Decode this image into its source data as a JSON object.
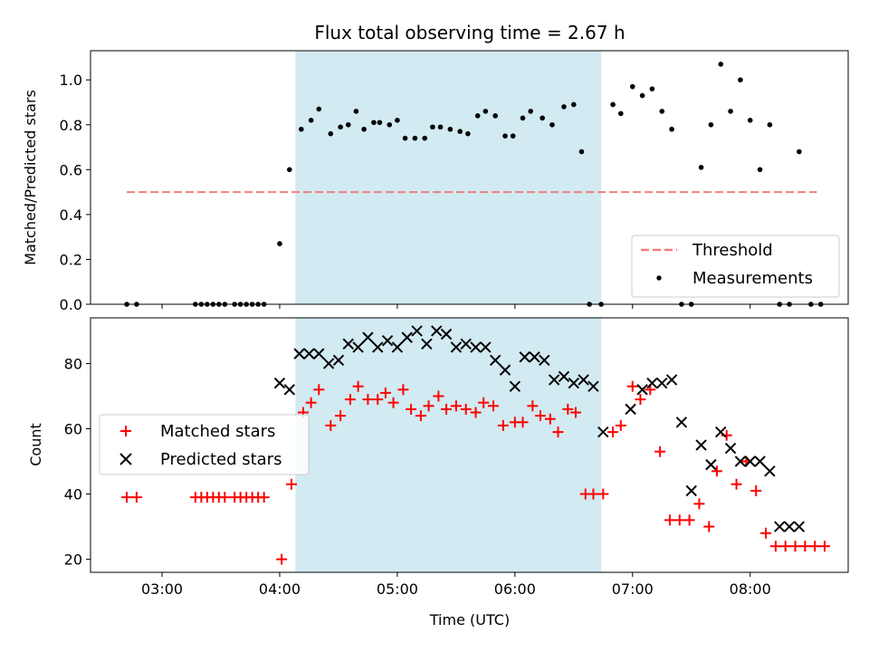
{
  "title": "Flux total observing time = 2.67 h",
  "xlabel": "Time (UTC)",
  "x_ticks": [
    "03:00",
    "04:00",
    "05:00",
    "06:00",
    "07:00",
    "08:00"
  ],
  "highlight_span": [
    "04:08",
    "06:44"
  ],
  "chart_data": [
    {
      "type": "scatter",
      "ylabel": "Matched/Predicted stars",
      "ylim": [
        0,
        1.13
      ],
      "y_ticks": [
        "0.0",
        "0.2",
        "0.4",
        "0.6",
        "0.8",
        "1.0"
      ],
      "legend_placement": "lower-right",
      "series": [
        {
          "name": "Threshold",
          "style": "dashed-line",
          "color": "#f08080",
          "x": [
            "02:42",
            "08:34"
          ],
          "y": [
            0.5,
            0.5
          ]
        },
        {
          "name": "Measurements",
          "style": "dot",
          "color": "#000000",
          "x": [
            "02:42",
            "02:47",
            "03:17",
            "03:20",
            "03:23",
            "03:26",
            "03:29",
            "03:32",
            "03:37",
            "03:40",
            "03:43",
            "03:46",
            "03:49",
            "03:52",
            "04:00",
            "04:05",
            "04:11",
            "04:16",
            "04:20",
            "04:26",
            "04:31",
            "04:35",
            "04:39",
            "04:43",
            "04:48",
            "04:51",
            "04:56",
            "05:00",
            "05:04",
            "05:09",
            "05:14",
            "05:18",
            "05:22",
            "05:27",
            "05:32",
            "05:36",
            "05:41",
            "05:45",
            "05:50",
            "05:55",
            "05:59",
            "06:04",
            "06:08",
            "06:14",
            "06:19",
            "06:25",
            "06:30",
            "06:34",
            "06:38",
            "06:44",
            "06:50",
            "06:54",
            "07:00",
            "07:05",
            "07:10",
            "07:15",
            "07:20",
            "07:25",
            "07:30",
            "07:35",
            "07:40",
            "07:45",
            "07:50",
            "07:55",
            "08:00",
            "08:05",
            "08:10",
            "08:15",
            "08:20",
            "08:25",
            "08:31",
            "08:36"
          ],
          "y": [
            0,
            0,
            0,
            0,
            0,
            0,
            0,
            0,
            0,
            0,
            0,
            0,
            0,
            0,
            0.27,
            0.6,
            0.78,
            0.82,
            0.87,
            0.76,
            0.79,
            0.8,
            0.86,
            0.78,
            0.81,
            0.81,
            0.8,
            0.82,
            0.74,
            0.74,
            0.74,
            0.79,
            0.79,
            0.78,
            0.77,
            0.76,
            0.84,
            0.86,
            0.84,
            0.75,
            0.75,
            0.83,
            0.86,
            0.83,
            0.8,
            0.88,
            0.89,
            0.68,
            0,
            0,
            0.89,
            0.85,
            0.97,
            0.93,
            0.96,
            0.86,
            0.78,
            0,
            0,
            0.61,
            0.8,
            1.07,
            0.86,
            1.0,
            0.82,
            0.6,
            0.8,
            0,
            0,
            0.68,
            0,
            0
          ]
        }
      ]
    },
    {
      "type": "scatter",
      "ylabel": "Count",
      "ylim": [
        16,
        94
      ],
      "y_ticks": [
        "20",
        "40",
        "60",
        "80"
      ],
      "legend_placement": "center-left",
      "series": [
        {
          "name": "Matched stars",
          "style": "plus",
          "color": "#ff0000",
          "x": [
            "02:42",
            "02:47",
            "03:17",
            "03:20",
            "03:23",
            "03:26",
            "03:29",
            "03:32",
            "03:37",
            "03:40",
            "03:43",
            "03:46",
            "03:49",
            "03:52",
            "04:01",
            "04:06",
            "04:12",
            "04:16",
            "04:20",
            "04:26",
            "04:31",
            "04:36",
            "04:40",
            "04:45",
            "04:50",
            "04:54",
            "04:58",
            "05:03",
            "05:07",
            "05:12",
            "05:16",
            "05:21",
            "05:25",
            "05:30",
            "05:35",
            "05:40",
            "05:44",
            "05:49",
            "05:54",
            "06:00",
            "06:04",
            "06:09",
            "06:13",
            "06:18",
            "06:22",
            "06:27",
            "06:31",
            "06:36",
            "06:40",
            "06:45",
            "06:50",
            "06:54",
            "07:00",
            "07:04",
            "07:09",
            "07:14",
            "07:19",
            "07:24",
            "07:29",
            "07:34",
            "07:39",
            "07:43",
            "07:48",
            "07:53",
            "07:58",
            "08:03",
            "08:08",
            "08:13",
            "08:18",
            "08:23",
            "08:28",
            "08:33",
            "08:38"
          ],
          "y": [
            39,
            39,
            39,
            39,
            39,
            39,
            39,
            39,
            39,
            39,
            39,
            39,
            39,
            39,
            20,
            43,
            65,
            68,
            72,
            61,
            64,
            69,
            73,
            69,
            69,
            71,
            68,
            72,
            66,
            64,
            67,
            70,
            66,
            67,
            66,
            65,
            68,
            67,
            61,
            62,
            62,
            67,
            64,
            63,
            59,
            66,
            65,
            40,
            40,
            40,
            59,
            61,
            73,
            69,
            72,
            53,
            32,
            32,
            32,
            37,
            30,
            47,
            58,
            43,
            50,
            41,
            28,
            24,
            24,
            24,
            24,
            24,
            24
          ]
        },
        {
          "name": "Predicted stars",
          "style": "x",
          "color": "#000000",
          "x": [
            "04:00",
            "04:05",
            "04:10",
            "04:15",
            "04:20",
            "04:25",
            "04:30",
            "04:35",
            "04:40",
            "04:45",
            "04:50",
            "04:55",
            "05:00",
            "05:05",
            "05:10",
            "05:15",
            "05:20",
            "05:25",
            "05:30",
            "05:35",
            "05:40",
            "05:45",
            "05:50",
            "05:55",
            "06:00",
            "06:05",
            "06:10",
            "06:15",
            "06:20",
            "06:25",
            "06:30",
            "06:35",
            "06:40",
            "06:45",
            "06:59",
            "07:05",
            "07:10",
            "07:15",
            "07:20",
            "07:25",
            "07:30",
            "07:35",
            "07:40",
            "07:45",
            "07:50",
            "07:55",
            "08:00",
            "08:05",
            "08:10",
            "08:15",
            "08:20",
            "08:25"
          ],
          "y": [
            74,
            72,
            83,
            83,
            83,
            80,
            81,
            86,
            85,
            88,
            85,
            87,
            85,
            88,
            90,
            86,
            90,
            89,
            85,
            86,
            85,
            85,
            81,
            78,
            73,
            82,
            82,
            81,
            75,
            76,
            74,
            75,
            73,
            59,
            66,
            72,
            74,
            74,
            75,
            62,
            41,
            55,
            49,
            59,
            54,
            50,
            50,
            50,
            47,
            30,
            30,
            30
          ]
        }
      ]
    }
  ]
}
